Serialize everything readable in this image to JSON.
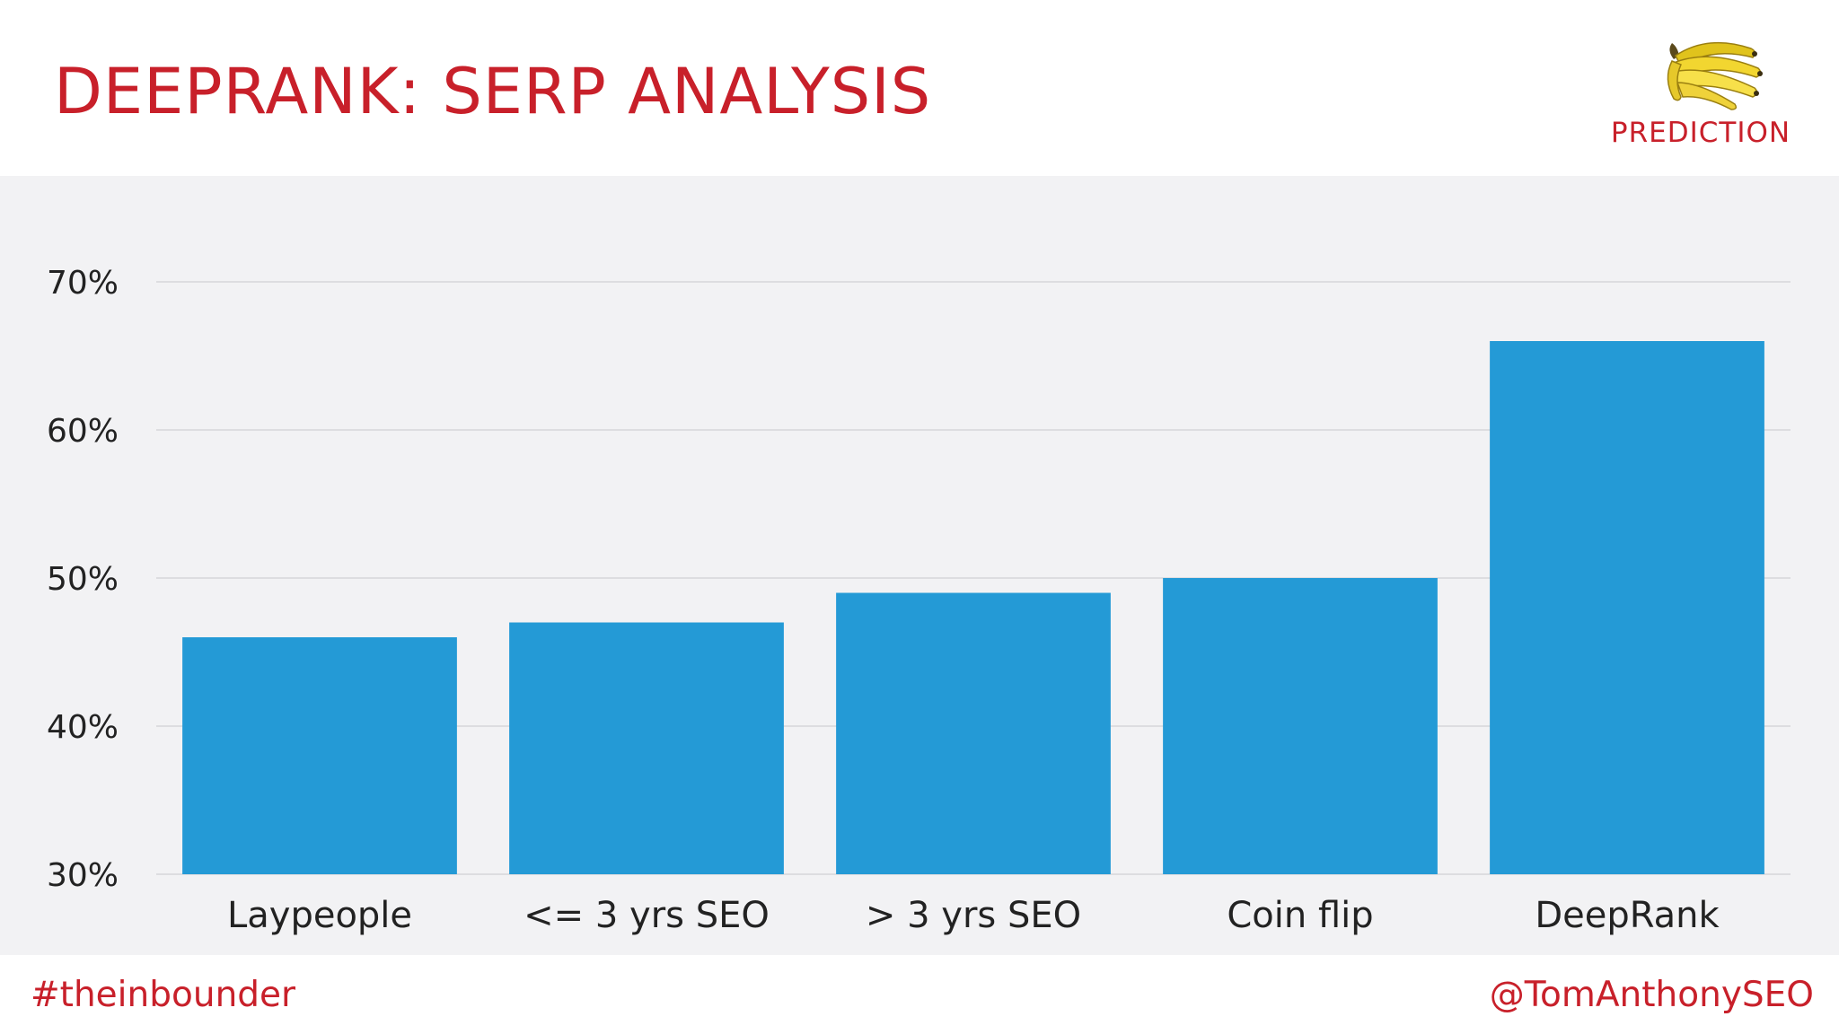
{
  "slide": {
    "title": "DEEPRANK: SERP ANALYSIS",
    "badge_label": "PREDICTION",
    "badge_icon": "banana-bunch-icon",
    "footer_left": "#theinbounder",
    "footer_right": "@TomAnthonySEO"
  },
  "colors": {
    "accent": "#c8202a",
    "bar": "#249ad6",
    "chart_background": "#f2f2f4",
    "gridline": "#d6d6da",
    "tick_text": "#222222"
  },
  "chart_data": {
    "type": "bar",
    "title": "",
    "xlabel": "",
    "ylabel": "",
    "categories": [
      "Laypeople",
      "<= 3 yrs SEO",
      "> 3 yrs SEO",
      "Coin flip",
      "DeepRank"
    ],
    "values": [
      46,
      47,
      49,
      50,
      66
    ],
    "ylim": [
      30,
      70
    ],
    "yticks": [
      30,
      40,
      50,
      60,
      70
    ],
    "ytick_labels": [
      "30%",
      "40%",
      "50%",
      "60%",
      "70%"
    ],
    "grid": true,
    "legend": "none"
  }
}
